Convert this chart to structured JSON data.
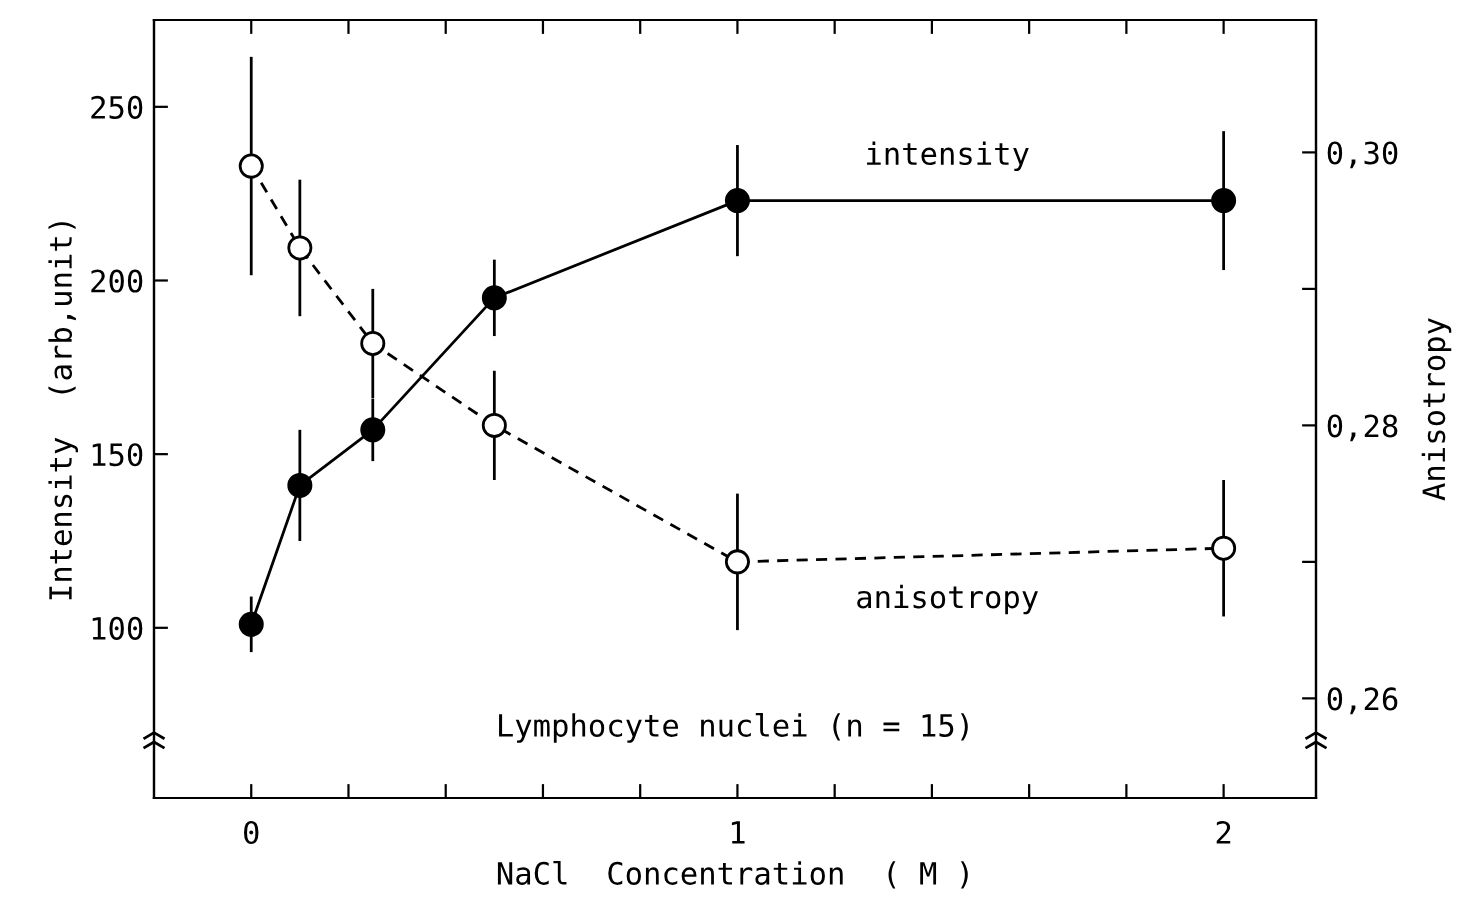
{
  "chart_data": {
    "type": "line",
    "xlabel": "NaCl  Concentration  ( M )",
    "ylabel": "Intensity  (arb,unit)",
    "y2label": "Anisotropy",
    "x": [
      0,
      0.1,
      0.25,
      0.5,
      1,
      2
    ],
    "series": [
      {
        "name": "intensity",
        "color": "#000000",
        "marker": "circle",
        "line_style": "solid",
        "values": [
          101,
          141,
          157,
          195,
          223,
          223
        ],
        "errors": [
          8,
          16,
          9,
          11,
          16,
          20
        ]
      },
      {
        "name": "anisotropy",
        "color": "#000000",
        "marker": "circle",
        "line_style": "dashed",
        "axis": "y2",
        "values": [
          0.299,
          0.293,
          0.286,
          0.28,
          0.27,
          0.271
        ],
        "errors": [
          0.008,
          0.005,
          0.004,
          0.004,
          0.005,
          0.005
        ]
      }
    ],
    "xlim": [
      -0.2,
      2.19
    ],
    "xticks": [
      0,
      {
        "value": 0.2,
        "label": null
      },
      {
        "value": 0.4,
        "label": null
      },
      {
        "value": 0.6,
        "label": null
      },
      {
        "value": 0.8,
        "label": null
      },
      1,
      {
        "value": 1.2,
        "label": null
      },
      {
        "value": 1.4,
        "label": null
      },
      {
        "value": 1.6,
        "label": null
      },
      {
        "value": 1.8,
        "label": null
      },
      2
    ],
    "ylim": [
      51,
      275
    ],
    "yticks": [
      100,
      150,
      200,
      250
    ],
    "y2lim": [
      0.2527,
      0.3097
    ],
    "y2ticks": [
      {
        "value": 0.26,
        "label": "0,26"
      },
      {
        "value": 0.27,
        "label": null
      },
      {
        "value": 0.28,
        "label": "0,28"
      },
      {
        "value": 0.29,
        "label": null
      },
      {
        "value": 0.3,
        "label": "0,30"
      }
    ],
    "annotations": [
      "Lymphocyte nuclei (n = 15)"
    ],
    "grid": false,
    "legend": false
  }
}
